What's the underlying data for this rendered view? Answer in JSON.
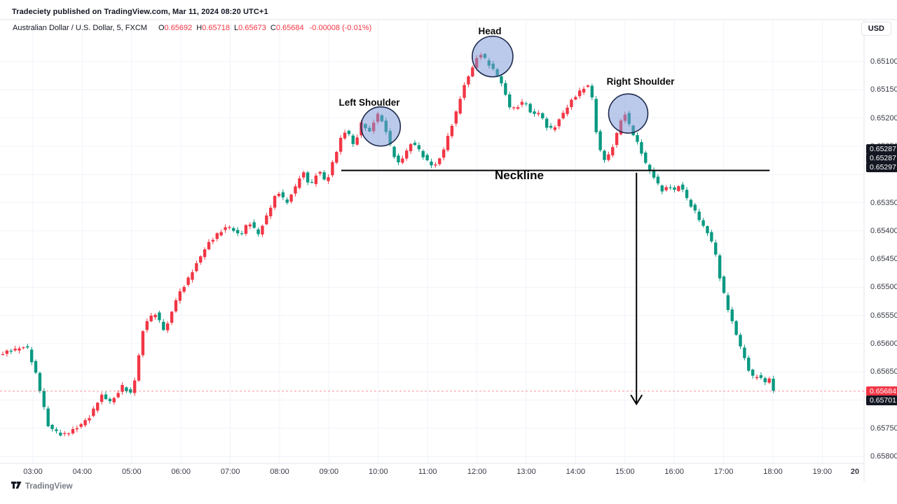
{
  "attribution": "Tradeciety published on TradingView.com, Mar 11, 2024 08:20 UTC+1",
  "legend": {
    "symbol": "Australian Dollar / U.S. Dollar, 5, FXCM",
    "o_label": "O",
    "o": "0.65692",
    "h_label": "H",
    "h": "0.65718",
    "l_label": "L",
    "l": "0.65673",
    "c_label": "C",
    "c": "0.65684",
    "change": "-0.00008 (-0.01%)"
  },
  "currency_button": "USD",
  "watermark": "TradingView",
  "annotations": {
    "left_shoulder": "Left Shoulder",
    "head": "Head",
    "right_shoulder": "Right Shoulder",
    "neckline": "Neckline"
  },
  "colors": {
    "up": "#089981",
    "down": "#f23645",
    "grid": "#f0f3fa",
    "border": "#e0e3eb",
    "axis_text": "#363a45",
    "badge_dark": "#131722",
    "badge_red": "#f23645",
    "circle_fill": "rgba(124,152,216,0.52)",
    "circle_stroke": "#1e2b4d",
    "drawing": "#000000"
  },
  "chart_data": {
    "type": "candlestick",
    "title": "Australian Dollar / U.S. Dollar",
    "interval_minutes": 5,
    "exchange": "FXCM",
    "inverted_scale": true,
    "ylabel": "USD",
    "y_ticks_visible": [
      0.651,
      0.6515,
      0.652,
      0.6525,
      0.6535,
      0.654,
      0.6545,
      0.655,
      0.6555,
      0.656,
      0.6565,
      0.6575,
      0.658
    ],
    "y_grid": [
      0.651,
      0.6515,
      0.652,
      0.6525,
      0.653,
      0.6535,
      0.654,
      0.6545,
      0.655,
      0.6555,
      0.656,
      0.6565,
      0.657,
      0.6575,
      0.658
    ],
    "x_ticks": [
      {
        "label": "03:00",
        "hour": 3
      },
      {
        "label": "04:00",
        "hour": 4
      },
      {
        "label": "05:00",
        "hour": 5
      },
      {
        "label": "06:00",
        "hour": 6
      },
      {
        "label": "07:00",
        "hour": 7
      },
      {
        "label": "08:00",
        "hour": 8
      },
      {
        "label": "09:00",
        "hour": 9
      },
      {
        "label": "10:00",
        "hour": 10
      },
      {
        "label": "11:00",
        "hour": 11
      },
      {
        "label": "12:00",
        "hour": 12
      },
      {
        "label": "13:00",
        "hour": 13
      },
      {
        "label": "14:00",
        "hour": 14
      },
      {
        "label": "15:00",
        "hour": 15
      },
      {
        "label": "16:00",
        "hour": 16
      },
      {
        "label": "17:00",
        "hour": 17
      },
      {
        "label": "18:00",
        "hour": 18
      },
      {
        "label": "19:00",
        "hour": 19
      },
      {
        "label": "20",
        "hour": 20,
        "bold": true
      }
    ],
    "last_price": 0.65684,
    "secondary_axis_price": 0.65701,
    "neckline": {
      "price_draw": 0.65293,
      "from_time": "09:15",
      "to_time": "17:56",
      "badges": [
        "0.65287",
        "0.65287",
        "0.65297"
      ],
      "badge_anchor_price": 0.65287
    },
    "arrow": {
      "time": "15:14",
      "from_price": 0.65297,
      "to_price": 0.65707
    },
    "pattern_circles": [
      {
        "name": "left-shoulder",
        "time": "10:03",
        "price": 0.65215,
        "r": 28
      },
      {
        "name": "head",
        "time": "12:19",
        "price": 0.65091,
        "r": 29
      },
      {
        "name": "right-shoulder",
        "time": "15:04",
        "price": 0.65192,
        "r": 28
      }
    ],
    "path": [
      [
        "02:20",
        0.65619
      ],
      [
        "02:55",
        0.65604
      ],
      [
        "03:08",
        0.65663
      ],
      [
        "03:21",
        0.65746
      ],
      [
        "03:38",
        0.65763
      ],
      [
        "03:55",
        0.6575
      ],
      [
        "04:12",
        0.65729
      ],
      [
        "04:25",
        0.65691
      ],
      [
        "04:38",
        0.65704
      ],
      [
        "04:51",
        0.65675
      ],
      [
        "05:03",
        0.65691
      ],
      [
        "05:18",
        0.65563
      ],
      [
        "05:31",
        0.65546
      ],
      [
        "05:43",
        0.65579
      ],
      [
        "05:57",
        0.65519
      ],
      [
        "06:09",
        0.65491
      ],
      [
        "06:23",
        0.65454
      ],
      [
        "06:34",
        0.65425
      ],
      [
        "06:48",
        0.65404
      ],
      [
        "07:00",
        0.65391
      ],
      [
        "07:14",
        0.65409
      ],
      [
        "07:25",
        0.65384
      ],
      [
        "07:37",
        0.65406
      ],
      [
        "07:51",
        0.65359
      ],
      [
        "08:00",
        0.65329
      ],
      [
        "08:11",
        0.65351
      ],
      [
        "08:22",
        0.65321
      ],
      [
        "08:30",
        0.65294
      ],
      [
        "08:40",
        0.65321
      ],
      [
        "08:50",
        0.65291
      ],
      [
        "08:59",
        0.65316
      ],
      [
        "09:07",
        0.65279
      ],
      [
        "09:16",
        0.65239
      ],
      [
        "09:24",
        0.65219
      ],
      [
        "09:33",
        0.65251
      ],
      [
        "09:43",
        0.65204
      ],
      [
        "09:51",
        0.65229
      ],
      [
        "10:01",
        0.65191
      ],
      [
        "10:10",
        0.65214
      ],
      [
        "10:19",
        0.65259
      ],
      [
        "10:27",
        0.65281
      ],
      [
        "10:36",
        0.65261
      ],
      [
        "10:44",
        0.65241
      ],
      [
        "10:53",
        0.65259
      ],
      [
        "11:01",
        0.65276
      ],
      [
        "11:11",
        0.65286
      ],
      [
        "11:20",
        0.65264
      ],
      [
        "11:28",
        0.65229
      ],
      [
        "11:37",
        0.65191
      ],
      [
        "11:44",
        0.65154
      ],
      [
        "11:51",
        0.65129
      ],
      [
        "11:59",
        0.65104
      ],
      [
        "12:06",
        0.65084
      ],
      [
        "12:15",
        0.65101
      ],
      [
        "12:23",
        0.65116
      ],
      [
        "12:30",
        0.65129
      ],
      [
        "12:37",
        0.65159
      ],
      [
        "12:44",
        0.65186
      ],
      [
        "12:52",
        0.65179
      ],
      [
        "13:01",
        0.65169
      ],
      [
        "13:09",
        0.65196
      ],
      [
        "13:18",
        0.65189
      ],
      [
        "13:26",
        0.65214
      ],
      [
        "13:35",
        0.65221
      ],
      [
        "13:43",
        0.65201
      ],
      [
        "13:52",
        0.65181
      ],
      [
        "14:00",
        0.65164
      ],
      [
        "14:09",
        0.65151
      ],
      [
        "14:17",
        0.65141
      ],
      [
        "14:23",
        0.65166
      ],
      [
        "14:29",
        0.65244
      ],
      [
        "14:36",
        0.65274
      ],
      [
        "14:43",
        0.65266
      ],
      [
        "14:50",
        0.65241
      ],
      [
        "14:56",
        0.65209
      ],
      [
        "15:02",
        0.65191
      ],
      [
        "15:08",
        0.65214
      ],
      [
        "15:15",
        0.65236
      ],
      [
        "15:22",
        0.65259
      ],
      [
        "15:29",
        0.65286
      ],
      [
        "15:36",
        0.65301
      ],
      [
        "15:42",
        0.65316
      ],
      [
        "15:49",
        0.65331
      ],
      [
        "15:56",
        0.65319
      ],
      [
        "16:03",
        0.65329
      ],
      [
        "16:10",
        0.65316
      ],
      [
        "16:16",
        0.65339
      ],
      [
        "16:23",
        0.65356
      ],
      [
        "16:30",
        0.65371
      ],
      [
        "16:37",
        0.65391
      ],
      [
        "16:44",
        0.65406
      ],
      [
        "16:51",
        0.65429
      ],
      [
        "16:58",
        0.65484
      ],
      [
        "17:04",
        0.65519
      ],
      [
        "17:11",
        0.65554
      ],
      [
        "17:18",
        0.65584
      ],
      [
        "17:25",
        0.65614
      ],
      [
        "17:32",
        0.65644
      ],
      [
        "17:38",
        0.65659
      ],
      [
        "17:45",
        0.65656
      ],
      [
        "17:51",
        0.65669
      ],
      [
        "17:58",
        0.65662
      ],
      [
        "18:03",
        0.65684
      ]
    ]
  }
}
